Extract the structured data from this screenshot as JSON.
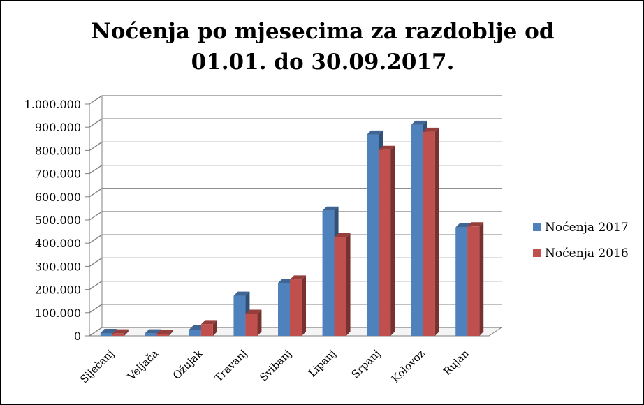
{
  "chart_data": {
    "type": "bar",
    "title_line1": "Noćenja po mjesecima za razdoblje od",
    "title_line2": "01.01. do 30.09.2017.",
    "categories": [
      "Siječanj",
      "Veljača",
      "Ožujak",
      "Travanj",
      "Svibanj",
      "Lipanj",
      "Srpanj",
      "Kolovoz",
      "Rujan"
    ],
    "series": [
      {
        "name": "Noćenja 2017",
        "color": "#4F81BD",
        "values": [
          12000,
          10000,
          27000,
          173000,
          228000,
          540000,
          868000,
          910000,
          468000
        ]
      },
      {
        "name": "Noćenja 2016",
        "color": "#C0504D",
        "values": [
          10000,
          9000,
          50000,
          95000,
          243000,
          425000,
          802000,
          880000,
          472000
        ]
      }
    ],
    "ylim": [
      0,
      1000000
    ],
    "y_ticks": [
      {
        "value": 0,
        "label": "0"
      },
      {
        "value": 100000,
        "label": "100.000"
      },
      {
        "value": 200000,
        "label": "200.000"
      },
      {
        "value": 300000,
        "label": "300.000"
      },
      {
        "value": 400000,
        "label": "400.000"
      },
      {
        "value": 500000,
        "label": "500.000"
      },
      {
        "value": 600000,
        "label": "600.000"
      },
      {
        "value": 700000,
        "label": "700.000"
      },
      {
        "value": 800000,
        "label": "800.000"
      },
      {
        "value": 900000,
        "label": "900.000"
      },
      {
        "value": 1000000,
        "label": "1.000.000"
      }
    ],
    "grid": true,
    "legend_position": "right"
  }
}
